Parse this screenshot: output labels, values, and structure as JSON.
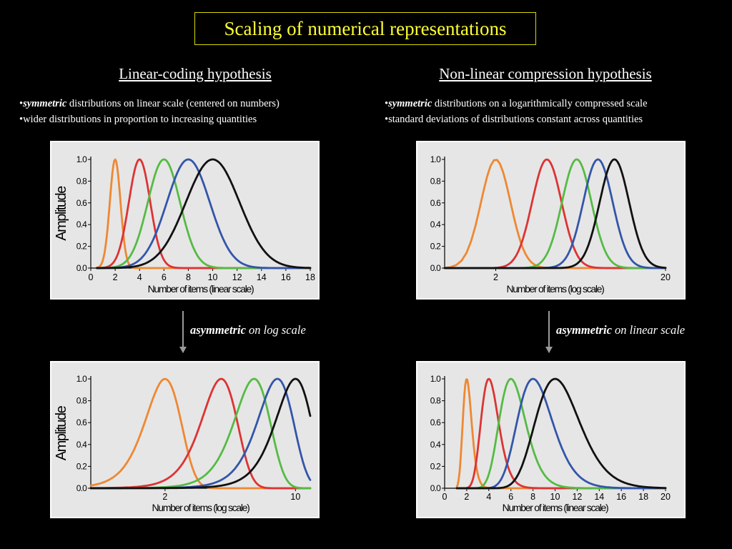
{
  "slide": {
    "title": "Scaling of numerical representations",
    "left": {
      "heading": "Linear-coding hypothesis",
      "bullet1_em": "symmetric",
      "bullet1_rest": " distributions on linear scale (centered on numbers)",
      "bullet2": "wider distributions in proportion to increasing quantities",
      "arrow_em": "asymmetric",
      "arrow_rest": " on log scale"
    },
    "right": {
      "heading": "Non-linear compression hypothesis",
      "bullet1_em": "symmetric",
      "bullet1_rest": " distributions on a logarithmically compressed scale",
      "bullet2": "standard deviations of distributions constant across quantities",
      "arrow_em": "asymmetric",
      "arrow_rest": " on linear scale"
    }
  },
  "chart_data": [
    {
      "type": "line",
      "panel": "top-left",
      "xlabel": "Number of items (linear scale)",
      "ylabel": "Amplitude",
      "xscale": "linear",
      "xlim": [
        0,
        18
      ],
      "ylim": [
        0,
        1
      ],
      "xticks": [
        "0",
        "2",
        "4",
        "6",
        "8",
        "10",
        "12",
        "14",
        "16",
        "18"
      ],
      "yticks": [
        "0.0",
        "0.2",
        "0.4",
        "0.6",
        "0.8",
        "1.0"
      ],
      "series": [
        {
          "color": "#ee8833",
          "peak": 2,
          "value_at_peak": 1.0
        },
        {
          "color": "#dd3333",
          "peak": 4,
          "value_at_peak": 1.0
        },
        {
          "color": "#55bb44",
          "peak": 6,
          "value_at_peak": 1.0
        },
        {
          "color": "#3355aa",
          "peak": 8,
          "value_at_peak": 1.0
        },
        {
          "color": "#111111",
          "peak": 10,
          "value_at_peak": 1.0
        }
      ]
    },
    {
      "type": "line",
      "panel": "top-right",
      "xlabel": "Number of items (log scale)",
      "ylabel": "",
      "xscale": "log",
      "xlim": [
        1,
        20
      ],
      "ylim": [
        0,
        1
      ],
      "xticks": [
        "2",
        "20"
      ],
      "yticks": [
        "0.0",
        "0.2",
        "0.4",
        "0.6",
        "0.8",
        "1.0"
      ],
      "series": [
        {
          "color": "#ee8833",
          "peak": 2,
          "value_at_peak": 1.0
        },
        {
          "color": "#dd3333",
          "peak": 4,
          "value_at_peak": 1.0
        },
        {
          "color": "#55bb44",
          "peak": 6,
          "value_at_peak": 1.0
        },
        {
          "color": "#3355aa",
          "peak": 8,
          "value_at_peak": 1.0
        },
        {
          "color": "#111111",
          "peak": 10,
          "value_at_peak": 1.0
        }
      ]
    },
    {
      "type": "line",
      "panel": "bottom-left",
      "xlabel": "Number of items (log scale)",
      "ylabel": "Amplitude",
      "xscale": "log",
      "xlim": [
        0.8,
        12
      ],
      "ylim": [
        0,
        1
      ],
      "xticks": [
        "2",
        "10"
      ],
      "yticks": [
        "0.0",
        "0.2",
        "0.4",
        "0.6",
        "0.8",
        "1.0"
      ],
      "series": [
        {
          "color": "#ee8833",
          "peak": 2,
          "value_at_peak": 1.0
        },
        {
          "color": "#dd3333",
          "peak": 4,
          "value_at_peak": 1.0
        },
        {
          "color": "#55bb44",
          "peak": 6,
          "value_at_peak": 1.0
        },
        {
          "color": "#3355aa",
          "peak": 8,
          "value_at_peak": 1.0
        },
        {
          "color": "#111111",
          "peak": 10,
          "value_at_peak": 1.0
        }
      ]
    },
    {
      "type": "line",
      "panel": "bottom-right",
      "xlabel": "Number of items (linear scale)",
      "ylabel": "",
      "xscale": "linear",
      "xlim": [
        0,
        20
      ],
      "ylim": [
        0,
        1
      ],
      "xticks": [
        "0",
        "2",
        "4",
        "6",
        "8",
        "10",
        "12",
        "14",
        "16",
        "18",
        "20"
      ],
      "yticks": [
        "0.0",
        "0.2",
        "0.4",
        "0.6",
        "0.8",
        "1.0"
      ],
      "series": [
        {
          "color": "#ee8833",
          "peak": 2,
          "value_at_peak": 1.0
        },
        {
          "color": "#dd3333",
          "peak": 4,
          "value_at_peak": 1.0
        },
        {
          "color": "#55bb44",
          "peak": 6,
          "value_at_peak": 1.0
        },
        {
          "color": "#3355aa",
          "peak": 8,
          "value_at_peak": 1.0
        },
        {
          "color": "#111111",
          "peak": 10,
          "value_at_peak": 1.0
        }
      ]
    }
  ]
}
